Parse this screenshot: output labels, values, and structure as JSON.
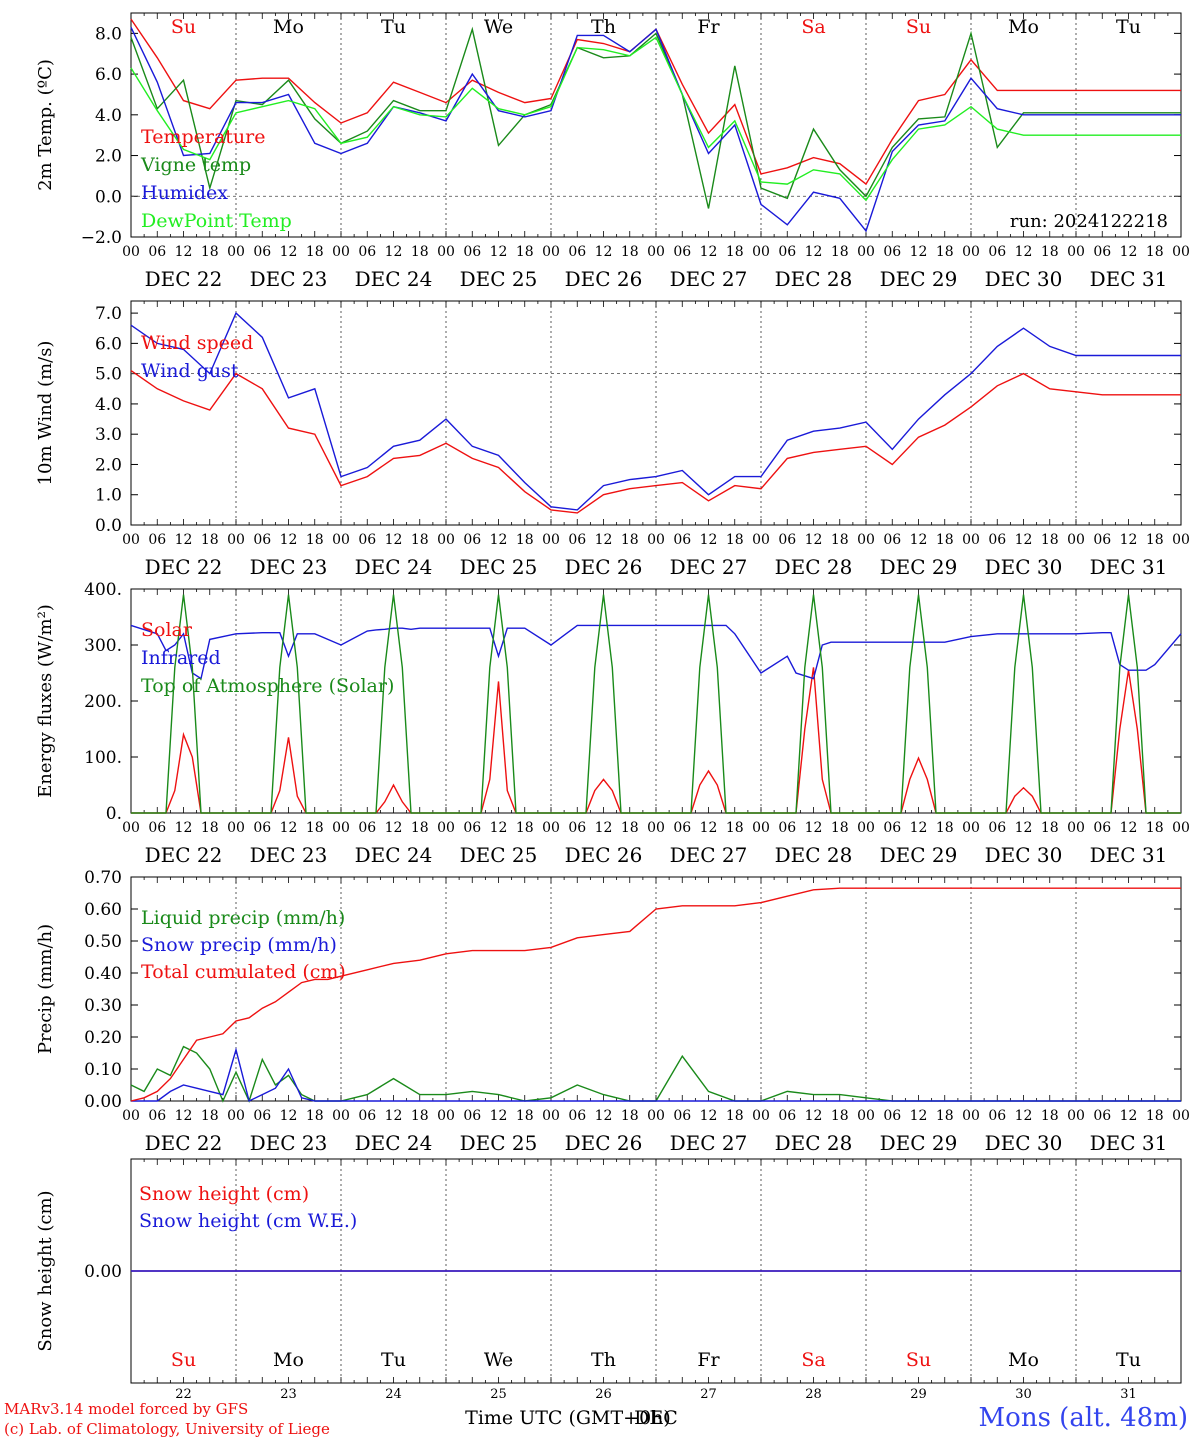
{
  "colors": {
    "red": "#ee1111",
    "dark_green": "#1a8a1a",
    "blue": "#1a1ad8",
    "light_green": "#22ee22",
    "black": "#000000"
  },
  "days": [
    "DEC 22",
    "DEC 23",
    "DEC 24",
    "DEC 25",
    "DEC 26",
    "DEC 27",
    "DEC 28",
    "DEC 29",
    "DEC 30",
    "DEC 31"
  ],
  "weekdays": [
    "Su",
    "Mo",
    "Tu",
    "We",
    "Th",
    "Fr",
    "Sa",
    "Su",
    "Mo",
    "Tu"
  ],
  "weekday_colors": [
    "#ee1111",
    "#000000",
    "#000000",
    "#000000",
    "#000000",
    "#000000",
    "#ee1111",
    "#ee1111",
    "#000000",
    "#000000"
  ],
  "hour_ticks": [
    "00",
    "06",
    "12",
    "18"
  ],
  "day_numbers": [
    "22",
    "23",
    "24",
    "25",
    "26",
    "27",
    "28",
    "29",
    "30",
    "31"
  ],
  "footer": {
    "model": "MARv3.14 model forced by GFS",
    "copyright": "(c) Lab. of Climatology, University of Liege",
    "xlabel": "Time UTC (GMT+0h)",
    "xlabel_overlay": "DEC",
    "station": "Mons (alt. 48m)"
  },
  "chart_data": [
    {
      "id": "temperature",
      "type": "line",
      "ylabel": "2m Temp. (ºC)",
      "ylim": [
        -2,
        9
      ],
      "yticks": [
        "−2.0",
        "0.0",
        "2.0",
        "4.0",
        "6.0",
        "8.0"
      ],
      "ytick_values": [
        -2,
        0,
        2,
        4,
        6,
        8
      ],
      "reference_line": 0,
      "run_label": "run: 2024122218",
      "x_hours": [
        0,
        6,
        12,
        18,
        24,
        30,
        36,
        42,
        48,
        54,
        60,
        66,
        72,
        78,
        84,
        90,
        96,
        102,
        108,
        114,
        120,
        126,
        132,
        138,
        144,
        150,
        156,
        162,
        168,
        174,
        180,
        186,
        192,
        198,
        204,
        210,
        216,
        222,
        228,
        234,
        240
      ],
      "series": [
        {
          "name": "Temperature",
          "color": "#ee1111",
          "values": [
            8.7,
            6.8,
            4.7,
            4.3,
            5.7,
            5.8,
            5.8,
            4.6,
            3.6,
            4.1,
            5.6,
            5.1,
            4.6,
            5.7,
            5.1,
            4.6,
            4.8,
            7.7,
            7.5,
            7.1,
            8.2,
            5.5,
            3.1,
            4.5,
            1.1,
            1.4,
            1.9,
            1.6,
            0.6,
            2.8,
            4.7,
            5.0,
            6.7,
            5.2,
            5.2,
            5.2,
            5.2,
            5.2,
            5.2,
            5.2,
            5.2
          ]
        },
        {
          "name": "Vigne temp",
          "color": "#1a8a1a",
          "values": [
            7.8,
            4.3,
            5.7,
            0.4,
            4.7,
            4.5,
            5.7,
            3.8,
            2.6,
            3.2,
            4.7,
            4.2,
            4.2,
            8.2,
            2.5,
            4.0,
            4.5,
            7.3,
            6.8,
            6.9,
            8.0,
            5.0,
            -0.6,
            6.4,
            0.4,
            -0.1,
            3.3,
            1.3,
            0.0,
            2.4,
            3.8,
            3.9,
            8.0,
            2.4,
            4.1,
            4.1,
            4.1,
            4.1,
            4.1,
            4.1,
            4.1
          ]
        },
        {
          "name": "Humidex",
          "color": "#1a1ad8",
          "values": [
            8.3,
            5.6,
            2.0,
            2.1,
            4.6,
            4.6,
            5.0,
            2.6,
            2.1,
            2.6,
            4.4,
            4.1,
            3.7,
            6.0,
            4.2,
            3.9,
            4.2,
            7.9,
            7.9,
            7.1,
            8.2,
            5.0,
            2.1,
            3.5,
            -0.4,
            -1.4,
            0.2,
            -0.1,
            -1.7,
            2.2,
            3.5,
            3.7,
            5.8,
            4.3,
            4.0,
            4.0,
            4.0,
            4.0,
            4.0,
            4.0,
            4.0
          ]
        },
        {
          "name": "DewPoint Temp",
          "color": "#22ee22",
          "values": [
            6.3,
            4.2,
            2.3,
            1.8,
            4.1,
            4.4,
            4.7,
            4.3,
            2.6,
            2.9,
            4.4,
            4.0,
            3.9,
            5.3,
            4.3,
            4.0,
            4.4,
            7.3,
            7.2,
            6.9,
            7.8,
            5.0,
            2.4,
            3.7,
            0.7,
            0.6,
            1.3,
            1.1,
            -0.2,
            1.8,
            3.3,
            3.5,
            4.4,
            3.3,
            3.0,
            3.0,
            3.0,
            3.0,
            3.0,
            3.0,
            3.0
          ]
        }
      ]
    },
    {
      "id": "wind",
      "type": "line",
      "ylabel": "10m Wind (m/s)",
      "ylim": [
        0,
        7.4
      ],
      "yticks": [
        "0.0",
        "1.0",
        "2.0",
        "3.0",
        "4.0",
        "5.0",
        "6.0",
        "7.0"
      ],
      "ytick_values": [
        0,
        1,
        2,
        3,
        4,
        5,
        6,
        7
      ],
      "reference_line": 5,
      "x_hours": [
        0,
        6,
        12,
        18,
        24,
        30,
        36,
        42,
        48,
        54,
        60,
        66,
        72,
        78,
        84,
        90,
        96,
        102,
        108,
        114,
        120,
        126,
        132,
        138,
        144,
        150,
        156,
        162,
        168,
        174,
        180,
        186,
        192,
        198,
        204,
        210,
        216,
        222,
        228,
        234,
        240
      ],
      "series": [
        {
          "name": "Wind speed",
          "color": "#ee1111",
          "values": [
            5.1,
            4.5,
            4.1,
            3.8,
            5.0,
            4.5,
            3.2,
            3.0,
            1.3,
            1.6,
            2.2,
            2.3,
            2.7,
            2.2,
            1.9,
            1.1,
            0.5,
            0.4,
            1.0,
            1.2,
            1.3,
            1.4,
            0.8,
            1.3,
            1.2,
            2.2,
            2.4,
            2.5,
            2.6,
            2.0,
            2.9,
            3.3,
            3.9,
            4.6,
            5.0,
            4.5,
            4.4,
            4.3,
            4.3,
            4.3,
            4.3
          ]
        },
        {
          "name": "Wind gust",
          "color": "#1a1ad8",
          "values": [
            6.6,
            6.0,
            5.8,
            5.0,
            7.0,
            6.2,
            4.2,
            4.5,
            1.6,
            1.9,
            2.6,
            2.8,
            3.5,
            2.6,
            2.3,
            1.4,
            0.6,
            0.5,
            1.3,
            1.5,
            1.6,
            1.8,
            1.0,
            1.6,
            1.6,
            2.8,
            3.1,
            3.2,
            3.4,
            2.5,
            3.5,
            4.3,
            5.0,
            5.9,
            6.5,
            5.9,
            5.6,
            5.6,
            5.6,
            5.6,
            5.6
          ]
        }
      ]
    },
    {
      "id": "energy",
      "type": "line",
      "ylabel": "Energy fluxes (W/m²)",
      "ylim": [
        0,
        400
      ],
      "yticks": [
        "0.",
        "100.",
        "200.",
        "300.",
        "400."
      ],
      "ytick_values": [
        0,
        100,
        200,
        300,
        400
      ],
      "x_hours": [
        0,
        6,
        8,
        10,
        12,
        14,
        16,
        18,
        24,
        30,
        32,
        34,
        36,
        38,
        40,
        42,
        48,
        54,
        56,
        58,
        60,
        62,
        64,
        66,
        72,
        78,
        80,
        82,
        84,
        86,
        88,
        90,
        96,
        102,
        104,
        106,
        108,
        110,
        112,
        114,
        120,
        126,
        128,
        130,
        132,
        134,
        136,
        138,
        144,
        150,
        152,
        154,
        156,
        158,
        160,
        162,
        168,
        174,
        176,
        178,
        180,
        182,
        184,
        186,
        192,
        198,
        200,
        202,
        204,
        206,
        208,
        210,
        216,
        222,
        224,
        226,
        228,
        230,
        232,
        234,
        240
      ],
      "series": [
        {
          "name": "Solar",
          "color": "#ee1111",
          "values": [
            0,
            0,
            0,
            40,
            140,
            100,
            0,
            0,
            0,
            0,
            0,
            40,
            135,
            30,
            0,
            0,
            0,
            0,
            0,
            20,
            50,
            20,
            0,
            0,
            0,
            0,
            0,
            60,
            235,
            40,
            0,
            0,
            0,
            0,
            0,
            40,
            60,
            40,
            0,
            0,
            0,
            0,
            0,
            50,
            75,
            50,
            0,
            0,
            0,
            0,
            0,
            150,
            260,
            60,
            0,
            0,
            0,
            0,
            0,
            60,
            98,
            60,
            0,
            0,
            0,
            0,
            0,
            30,
            45,
            30,
            0,
            0,
            0,
            0,
            0,
            150,
            255,
            150,
            0,
            0,
            0
          ]
        },
        {
          "name": "Infrared",
          "color": "#1a1ad8",
          "values": [
            335,
            320,
            290,
            300,
            320,
            250,
            240,
            310,
            320,
            322,
            322,
            322,
            280,
            320,
            320,
            320,
            300,
            325,
            327,
            328,
            330,
            330,
            328,
            330,
            330,
            330,
            330,
            330,
            280,
            330,
            330,
            330,
            300,
            335,
            335,
            335,
            335,
            335,
            335,
            335,
            335,
            335,
            335,
            335,
            335,
            335,
            335,
            320,
            250,
            280,
            250,
            245,
            240,
            300,
            305,
            305,
            305,
            305,
            305,
            305,
            305,
            305,
            305,
            305,
            315,
            320,
            320,
            320,
            320,
            320,
            320,
            320,
            320,
            322,
            322,
            265,
            255,
            255,
            255,
            265,
            320
          ]
        },
        {
          "name": "Top of Atmosphere (Solar)",
          "color": "#1a8a1a",
          "values": [
            0,
            0,
            0,
            260,
            390,
            260,
            0,
            0,
            0,
            0,
            0,
            260,
            390,
            260,
            0,
            0,
            0,
            0,
            0,
            260,
            390,
            260,
            0,
            0,
            0,
            0,
            0,
            260,
            390,
            260,
            0,
            0,
            0,
            0,
            0,
            260,
            390,
            260,
            0,
            0,
            0,
            0,
            0,
            260,
            390,
            260,
            0,
            0,
            0,
            0,
            0,
            260,
            390,
            260,
            0,
            0,
            0,
            0,
            0,
            260,
            390,
            260,
            0,
            0,
            0,
            0,
            0,
            260,
            390,
            260,
            0,
            0,
            0,
            0,
            0,
            260,
            390,
            260,
            0,
            0,
            0
          ]
        }
      ]
    },
    {
      "id": "precip",
      "type": "line",
      "ylabel": "Precip (mm/h)",
      "ylim": [
        0,
        0.7
      ],
      "yticks": [
        "0.00",
        "0.10",
        "0.20",
        "0.30",
        "0.40",
        "0.50",
        "0.60",
        "0.70"
      ],
      "ytick_values": [
        0,
        0.1,
        0.2,
        0.3,
        0.4,
        0.5,
        0.6,
        0.7
      ],
      "x_hours": [
        0,
        3,
        6,
        9,
        12,
        15,
        18,
        21,
        24,
        27,
        30,
        33,
        36,
        39,
        42,
        45,
        48,
        54,
        60,
        66,
        72,
        78,
        84,
        90,
        96,
        102,
        108,
        114,
        120,
        126,
        132,
        138,
        144,
        150,
        156,
        162,
        168,
        174,
        180,
        186,
        192,
        198,
        204,
        210,
        216,
        222,
        228,
        234,
        240
      ],
      "series": [
        {
          "name": "Liquid precip (mm/h)",
          "color": "#1a8a1a",
          "values": [
            0.05,
            0.03,
            0.1,
            0.08,
            0.17,
            0.15,
            0.1,
            0.0,
            0.09,
            0.0,
            0.13,
            0.05,
            0.08,
            0.02,
            0.0,
            0.0,
            0.0,
            0.02,
            0.07,
            0.02,
            0.02,
            0.03,
            0.02,
            0.0,
            0.01,
            0.05,
            0.02,
            0.0,
            0.0,
            0.14,
            0.03,
            0.0,
            0.0,
            0.03,
            0.02,
            0.02,
            0.01,
            0.0,
            0.0,
            0.0,
            0.0,
            0.0,
            0.0,
            0.0,
            0.0,
            0.0,
            0.0,
            0.0,
            0.0
          ]
        },
        {
          "name": "Snow precip (mm/h)",
          "color": "#1a1ad8",
          "values": [
            0.0,
            0.0,
            0.0,
            0.03,
            0.05,
            0.04,
            0.03,
            0.02,
            0.16,
            0.0,
            0.02,
            0.04,
            0.1,
            0.01,
            0.0,
            0.0,
            0.0,
            0.0,
            0.0,
            0.0,
            0.0,
            0.0,
            0.0,
            0.0,
            0.0,
            0.0,
            0.0,
            0.0,
            0.0,
            0.0,
            0.0,
            0.0,
            0.0,
            0.0,
            0.0,
            0.0,
            0.0,
            0.0,
            0.0,
            0.0,
            0.0,
            0.0,
            0.0,
            0.0,
            0.0,
            0.0,
            0.0,
            0.0,
            0.0
          ]
        },
        {
          "name": "Total cumulated (cm)",
          "color": "#ee1111",
          "values": [
            0.0,
            0.01,
            0.03,
            0.07,
            0.13,
            0.19,
            0.2,
            0.21,
            0.25,
            0.26,
            0.29,
            0.31,
            0.34,
            0.37,
            0.38,
            0.38,
            0.39,
            0.41,
            0.43,
            0.44,
            0.46,
            0.47,
            0.47,
            0.47,
            0.48,
            0.51,
            0.52,
            0.53,
            0.6,
            0.61,
            0.61,
            0.61,
            0.62,
            0.64,
            0.66,
            0.665,
            0.665,
            0.665,
            0.665,
            0.665,
            0.665,
            0.665,
            0.665,
            0.665,
            0.665,
            0.665,
            0.665,
            0.665,
            0.665
          ]
        }
      ]
    },
    {
      "id": "snow",
      "type": "line",
      "ylabel": "Snow height (cm)",
      "ylim": [
        -1,
        1
      ],
      "yticks": [
        "0.00"
      ],
      "ytick_values": [
        0
      ],
      "x_hours": [
        0,
        240
      ],
      "series": [
        {
          "name": "Snow height (cm)",
          "color": "#ee1111",
          "values": [
            0,
            0
          ]
        },
        {
          "name": "Snow height (cm W.E.)",
          "color": "#1a1ad8",
          "values": [
            0,
            0
          ]
        }
      ]
    }
  ]
}
